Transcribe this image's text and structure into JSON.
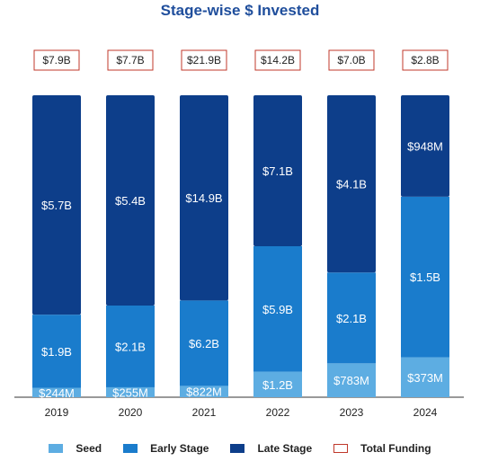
{
  "chart_data": {
    "type": "bar",
    "stacked": true,
    "title": "Stage-wise $ Invested",
    "categories": [
      "2019",
      "2020",
      "2021",
      "2022",
      "2023",
      "2024"
    ],
    "series": [
      {
        "name": "Seed",
        "values": [
          0.244,
          0.255,
          0.822,
          1.2,
          0.783,
          0.373
        ],
        "labels": [
          "$244M",
          "$255M",
          "$822M",
          "$1.2B",
          "$783M",
          "$373M"
        ],
        "color": "#5dade2"
      },
      {
        "name": "Early Stage",
        "values": [
          1.9,
          2.1,
          6.2,
          5.9,
          2.1,
          1.5
        ],
        "labels": [
          "$1.9B",
          "$2.1B",
          "$6.2B",
          "$5.9B",
          "$2.1B",
          "$1.5B"
        ],
        "color": "#1a7ccc"
      },
      {
        "name": "Late Stage",
        "values": [
          5.7,
          5.4,
          14.9,
          7.1,
          4.1,
          0.948
        ],
        "labels": [
          "$5.7B",
          "$5.4B",
          "$14.9B",
          "$7.1B",
          "$4.1B",
          "$948M"
        ],
        "color": "#0d3e8a"
      }
    ],
    "totals": {
      "name": "Total Funding",
      "values": [
        7.9,
        7.7,
        21.9,
        14.2,
        7.0,
        2.8
      ],
      "labels": [
        "$7.9B",
        "$7.7B",
        "$21.9B",
        "$14.2B",
        "$7.0B",
        "$2.8B"
      ],
      "color": "#c0392b"
    },
    "normalized_to_100_percent": true,
    "legend_position": "bottom",
    "grid": false
  },
  "legend": {
    "seed": "Seed",
    "early": "Early Stage",
    "late": "Late Stage",
    "total": "Total Funding"
  }
}
